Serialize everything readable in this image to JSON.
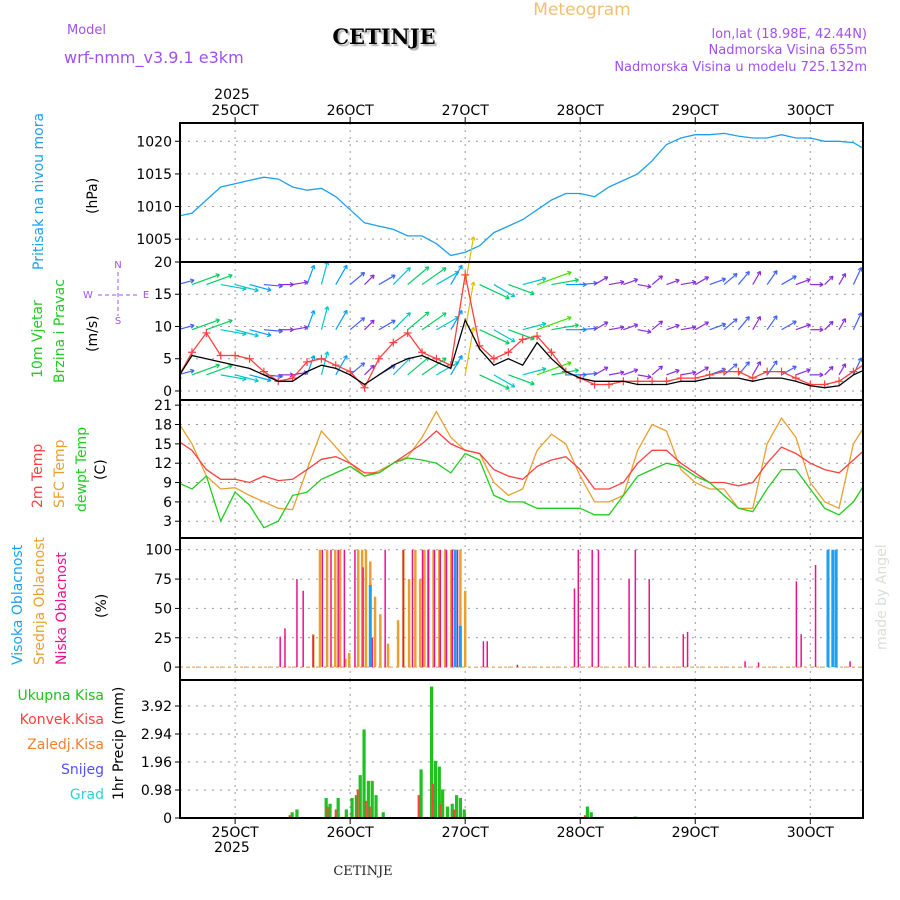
{
  "header": {
    "meteogram": "Meteogram",
    "station": "CETINJE",
    "model_label": "Model",
    "model_name": "wrf-nmm_v3.9.1  e3km",
    "lonlat": "lon,lat (18.98E, 42.44N)",
    "elevation": "Nadmorska Visina 655m",
    "model_elevation": "Nadmorska Visina u modelu 725.132m",
    "footer_station": "CETINJE",
    "watermark": "made by Angel",
    "year": "2025"
  },
  "x_axis": {
    "unit": "hours since 25OCT2025 00:00",
    "xlim": [
      -11.5,
      131
    ],
    "ticks": [
      {
        "h": 0,
        "label": "25OCT"
      },
      {
        "h": 24,
        "label": "26OCT"
      },
      {
        "h": 48,
        "label": "27OCT"
      },
      {
        "h": 72,
        "label": "28OCT"
      },
      {
        "h": 96,
        "label": "29OCT"
      },
      {
        "h": 120,
        "label": "30OCT"
      }
    ],
    "year_label": "2025"
  },
  "colors": {
    "pressure": "#1ea0f0",
    "wind_speed": "#000000",
    "gust": "#ff4040",
    "t2m": "#ff4040",
    "sfc": "#e8a030",
    "dewpt": "#20cc20",
    "cloud_high": "#1ea0f0",
    "cloud_mid": "#e8a030",
    "cloud_low": "#f0108a",
    "rain_total": "#20c020",
    "rain_conv": "#ff4040",
    "freezing": "#f08030",
    "snow": "#5050ff",
    "hail": "#30d0d0"
  },
  "chart_data": [
    {
      "type": "line",
      "id": "pressure",
      "ylabel": "Pritisak na nivou mora",
      "unit": "(hPa)",
      "ylim": [
        1001.5,
        1022.8
      ],
      "yticks": [
        1005,
        1010,
        1015,
        1020
      ],
      "x": [
        -12,
        -9,
        -6,
        -3,
        0,
        3,
        6,
        9,
        12,
        15,
        18,
        21,
        24,
        27,
        30,
        33,
        36,
        39,
        42,
        45,
        48,
        51,
        54,
        57,
        60,
        63,
        66,
        69,
        72,
        75,
        78,
        81,
        84,
        87,
        90,
        93,
        96,
        99,
        102,
        105,
        108,
        111,
        114,
        117,
        120,
        123,
        126,
        129,
        132
      ],
      "values": [
        1008.5,
        1009,
        1011,
        1013,
        1013.5,
        1014,
        1014.5,
        1014.2,
        1013,
        1012.5,
        1012.8,
        1011.5,
        1009.5,
        1007.5,
        1007,
        1006.5,
        1005.5,
        1005.5,
        1004.3,
        1002.5,
        1003,
        1004,
        1006,
        1007,
        1008,
        1009.5,
        1011,
        1012,
        1012,
        1011.5,
        1013,
        1014,
        1015,
        1017,
        1019.5,
        1020.5,
        1021,
        1021,
        1021.2,
        1020.8,
        1020.5,
        1020.5,
        1021,
        1020.5,
        1020.5,
        1020,
        1020,
        1019.8,
        1018.5
      ]
    },
    {
      "type": "line",
      "id": "wind",
      "ylabel1": "10m Vjetar",
      "ylabel2": "Brzina i Pravac",
      "unit": "(m/s)",
      "compass": {
        "n": "N",
        "s": "S",
        "e": "E",
        "w": "W"
      },
      "ylim": [
        -1.4,
        20
      ],
      "yticks": [
        0,
        5,
        10,
        15,
        20
      ],
      "arrow_rows": [
        2.5,
        9.5,
        16.5
      ],
      "x": [
        -12,
        -9,
        -6,
        -3,
        0,
        3,
        6,
        9,
        12,
        15,
        18,
        21,
        24,
        27,
        30,
        33,
        36,
        39,
        42,
        45,
        48,
        51,
        54,
        57,
        60,
        63,
        66,
        69,
        72,
        75,
        78,
        81,
        84,
        87,
        90,
        93,
        96,
        99,
        102,
        105,
        108,
        111,
        114,
        117,
        120,
        123,
        126,
        129,
        132
      ],
      "speed": [
        2,
        5.5,
        5,
        4.5,
        4,
        3.5,
        2.5,
        1.5,
        1.5,
        3,
        4,
        3.5,
        2.5,
        1,
        2.5,
        4,
        5,
        5.5,
        4.5,
        3.5,
        11,
        6.5,
        4,
        5,
        4,
        7.5,
        5,
        3,
        2,
        1.5,
        1.5,
        1.5,
        1,
        1,
        1,
        1.5,
        1.5,
        2,
        2,
        2,
        1.5,
        2,
        2,
        1.5,
        0.8,
        0.5,
        0.8,
        2.5,
        3.5
      ],
      "gust": [
        2,
        6,
        9,
        5.5,
        5.5,
        5,
        3,
        1.5,
        2,
        4.5,
        5,
        4,
        3,
        0.5,
        5,
        7.5,
        9,
        6,
        5,
        4,
        18,
        7,
        5,
        6,
        8,
        8.5,
        6,
        3,
        2,
        1,
        1,
        1.5,
        1.5,
        1.5,
        1.5,
        2,
        2,
        2.5,
        3,
        3,
        2,
        3,
        3,
        2,
        1,
        1,
        1.5,
        3,
        4.5
      ],
      "dir_to_deg": [
        15,
        20,
        20,
        -10,
        -15,
        -15,
        -5,
        0,
        10,
        70,
        75,
        60,
        40,
        45,
        30,
        45,
        40,
        35,
        30,
        60,
        80,
        -25,
        -30,
        -20,
        15,
        20,
        10,
        0,
        5,
        30,
        10,
        20,
        -10,
        40,
        20,
        10,
        30,
        20,
        40,
        50,
        60,
        55,
        30,
        20,
        0,
        45,
        60,
        65,
        70
      ]
    },
    {
      "type": "line",
      "id": "temperature",
      "labels": [
        "2m Temp",
        "SFC Temp",
        "dewpt Temp"
      ],
      "unit": "(C)",
      "ylim": [
        0.4,
        21.8
      ],
      "yticks": [
        3,
        6,
        9,
        12,
        15,
        18,
        21
      ],
      "x": [
        -12,
        -9,
        -6,
        -3,
        0,
        3,
        6,
        9,
        12,
        15,
        18,
        21,
        24,
        27,
        30,
        33,
        36,
        39,
        42,
        45,
        48,
        51,
        54,
        57,
        60,
        63,
        66,
        69,
        72,
        75,
        78,
        81,
        84,
        87,
        90,
        93,
        96,
        99,
        102,
        105,
        108,
        111,
        114,
        117,
        120,
        123,
        126,
        129,
        132
      ],
      "series": [
        {
          "name": "2m Temp",
          "values": [
            15.5,
            14,
            11,
            9.5,
            9.5,
            9,
            10,
            9.3,
            9.5,
            11,
            12.6,
            13,
            12,
            10.5,
            10.5,
            12,
            13.5,
            15,
            17,
            15,
            14,
            13.5,
            11,
            10,
            9.5,
            11.5,
            12.5,
            13,
            11,
            8,
            8,
            9,
            12,
            14,
            14,
            12,
            10.5,
            9,
            9,
            8.5,
            9,
            12,
            14.5,
            13.5,
            12,
            11,
            10.5,
            12.5,
            14.5
          ]
        },
        {
          "name": "SFC Temp",
          "values": [
            18.5,
            15,
            10,
            8,
            8.2,
            7,
            6,
            5,
            4.8,
            11,
            17,
            14.5,
            12,
            10,
            10.8,
            12,
            13,
            16,
            20,
            16,
            14,
            13.5,
            9,
            7,
            8,
            14,
            16.5,
            15,
            10,
            6,
            6,
            7,
            14,
            18,
            17,
            11,
            9,
            8,
            8,
            5,
            5,
            15,
            19,
            16,
            9,
            6,
            5,
            15,
            18.5
          ]
        },
        {
          "name": "dewpt Temp",
          "values": [
            9,
            8,
            10,
            3,
            7.5,
            5.5,
            2,
            3,
            7,
            7.5,
            9.5,
            10.5,
            11.5,
            10,
            10.5,
            12,
            12.8,
            12.5,
            12,
            10.5,
            13.5,
            12.5,
            7,
            6,
            6,
            5,
            5,
            5,
            5,
            4,
            4,
            7,
            10,
            11,
            12,
            11.5,
            10,
            9,
            7,
            5,
            4.5,
            8,
            11,
            11,
            8,
            5,
            4,
            6,
            9.5
          ]
        }
      ]
    },
    {
      "type": "bar",
      "id": "cloud",
      "labels": [
        "Visoka Oblacnost",
        "Srednja Oblacnost",
        "Niska Oblacnost"
      ],
      "unit": "(%)",
      "ylim": [
        -11,
        110
      ],
      "yticks": [
        0,
        25,
        50,
        75,
        100
      ],
      "low": [
        [
          9.4,
          26
        ],
        [
          10.4,
          33
        ],
        [
          12.9,
          75
        ],
        [
          14.2,
          65
        ],
        [
          16.3,
          27
        ],
        [
          18.2,
          100
        ],
        [
          20.0,
          100
        ],
        [
          21.5,
          100
        ],
        [
          22.8,
          100
        ],
        [
          25.0,
          100
        ],
        [
          26.7,
          85
        ],
        [
          28.6,
          25
        ],
        [
          31.3,
          100
        ],
        [
          35.1,
          100
        ],
        [
          37.0,
          100
        ],
        [
          39.1,
          100
        ],
        [
          40.3,
          100
        ],
        [
          41.6,
          100
        ],
        [
          42.8,
          100
        ],
        [
          44.1,
          100
        ],
        [
          45.3,
          100
        ],
        [
          46.4,
          100
        ],
        [
          51.8,
          22
        ],
        [
          52.6,
          22
        ],
        [
          58.9,
          2
        ],
        [
          70.8,
          67
        ],
        [
          71.6,
          100
        ],
        [
          74.5,
          100
        ],
        [
          75.8,
          100
        ],
        [
          82.2,
          75
        ],
        [
          83.5,
          100
        ],
        [
          86.4,
          75
        ],
        [
          93.5,
          28
        ],
        [
          94.4,
          30
        ],
        [
          106.4,
          5
        ],
        [
          109.2,
          4
        ],
        [
          117.1,
          73
        ],
        [
          118.1,
          28
        ],
        [
          121.1,
          87
        ],
        [
          128.3,
          5
        ]
      ],
      "mid": [
        [
          16.3,
          28
        ],
        [
          17.7,
          100
        ],
        [
          19.2,
          100
        ],
        [
          20.9,
          100
        ],
        [
          21.9,
          100
        ],
        [
          23.0,
          7
        ],
        [
          23.8,
          12
        ],
        [
          25.7,
          100
        ],
        [
          26.5,
          100
        ],
        [
          27.3,
          100
        ],
        [
          28.2,
          90
        ],
        [
          29.2,
          60
        ],
        [
          30.3,
          45
        ],
        [
          31.9,
          20
        ],
        [
          34.0,
          40
        ],
        [
          35.1,
          100
        ],
        [
          36.3,
          75
        ],
        [
          37.6,
          100
        ],
        [
          38.6,
          75
        ],
        [
          39.5,
          100
        ],
        [
          40.3,
          100
        ],
        [
          41.4,
          100
        ],
        [
          42.6,
          100
        ],
        [
          43.8,
          100
        ],
        [
          45.1,
          100
        ],
        [
          45.9,
          100
        ],
        [
          47.0,
          100
        ],
        [
          48.0,
          65
        ]
      ],
      "high": [
        [
          28.2,
          70
        ],
        [
          45.9,
          100
        ],
        [
          47.0,
          35
        ],
        [
          123.7,
          100
        ],
        [
          124.7,
          100
        ],
        [
          125.4,
          100
        ]
      ]
    },
    {
      "type": "bar",
      "id": "precip",
      "labels": [
        "Ukupna  Kisa",
        "Konvek.Kisa",
        "Zaledj.Kisa",
        "Snijeg",
        "Grad"
      ],
      "ylabel": "1hr Precip (mm)",
      "ylim": [
        0,
        4.83
      ],
      "yticks": [
        0,
        0.98,
        1.96,
        2.94,
        3.92
      ],
      "tick_labels": [
        "0",
        "0.98",
        "1.96",
        "2.94",
        "3.92"
      ],
      "total": [
        [
          11.9,
          0.2
        ],
        [
          12.9,
          0.3
        ],
        [
          19.0,
          0.7
        ],
        [
          19.8,
          0.5
        ],
        [
          21.5,
          0.7
        ],
        [
          23.2,
          0.3
        ],
        [
          24.4,
          0.7
        ],
        [
          25.3,
          0.8
        ],
        [
          26.1,
          1.5
        ],
        [
          26.9,
          3.1
        ],
        [
          27.8,
          1.3
        ],
        [
          28.6,
          1.3
        ],
        [
          29.4,
          0.8
        ],
        [
          30.9,
          0.2
        ],
        [
          38.8,
          1.7
        ],
        [
          41.0,
          4.6
        ],
        [
          41.8,
          2.0
        ],
        [
          42.6,
          1.8
        ],
        [
          43.3,
          1.0
        ],
        [
          44.3,
          0.4
        ],
        [
          45.3,
          0.5
        ],
        [
          46.2,
          0.8
        ],
        [
          47.0,
          0.7
        ],
        [
          47.8,
          0.3
        ],
        [
          73.5,
          0.4
        ],
        [
          74.3,
          0.2
        ],
        [
          83.5,
          0.05
        ]
      ],
      "convective": [
        [
          11.9,
          0.1
        ],
        [
          19.8,
          0.4
        ],
        [
          21.5,
          0.3
        ],
        [
          26.1,
          1.0
        ],
        [
          27.8,
          0.6
        ],
        [
          28.6,
          0.4
        ],
        [
          38.8,
          0.8
        ],
        [
          41.8,
          1.2
        ],
        [
          43.3,
          0.5
        ],
        [
          46.2,
          0.3
        ],
        [
          73.5,
          0.1
        ]
      ]
    }
  ]
}
